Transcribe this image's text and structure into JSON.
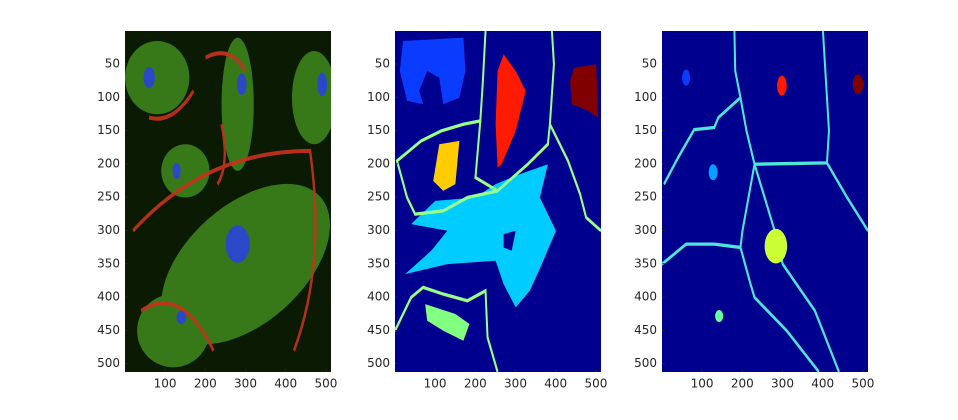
{
  "chart_data": [
    {
      "type": "image",
      "xlim": [
        0.5,
        512.5
      ],
      "ylim": [
        0.5,
        512.5
      ],
      "xticks": [
        100,
        200,
        300,
        400,
        500
      ],
      "yticks": [
        50,
        100,
        150,
        200,
        250,
        300,
        350,
        400,
        450,
        500
      ]
    },
    {
      "type": "image",
      "xlim": [
        0.5,
        512.5
      ],
      "ylim": [
        0.5,
        512.5
      ],
      "xticks": [
        100,
        200,
        300,
        400,
        500
      ],
      "yticks": [
        50,
        100,
        150,
        200,
        250,
        300,
        350,
        400,
        450,
        500
      ]
    },
    {
      "type": "image",
      "xlim": [
        0.5,
        512.5
      ],
      "ylim": [
        0.5,
        512.5
      ],
      "xticks": [
        100,
        200,
        300,
        400,
        500
      ],
      "yticks": [
        50,
        100,
        150,
        200,
        250,
        300,
        350,
        400,
        450,
        500
      ]
    }
  ]
}
